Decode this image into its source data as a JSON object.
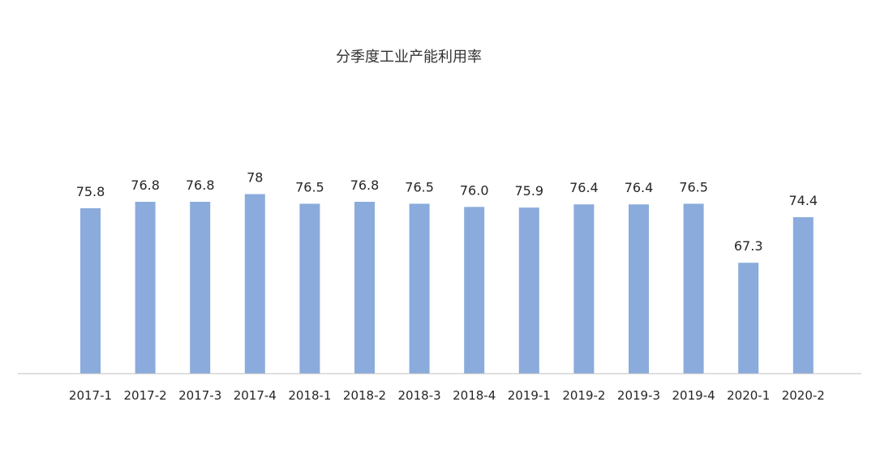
{
  "chart_data": {
    "type": "bar",
    "title": "分季度工业产能利用率",
    "xlabel": "",
    "ylabel": "",
    "categories": [
      "2017-1",
      "2017-2",
      "2017-3",
      "2017-4",
      "2018-1",
      "2018-2",
      "2018-3",
      "2018-4",
      "2019-1",
      "2019-2",
      "2019-3",
      "2019-4",
      "2020-1",
      "2020-2"
    ],
    "values": [
      75.8,
      76.8,
      76.8,
      78,
      76.5,
      76.8,
      76.5,
      76.0,
      75.9,
      76.4,
      76.4,
      76.5,
      67.3,
      74.4
    ],
    "data_labels": [
      "75.8",
      "76.8",
      "76.8",
      "78",
      "76.5",
      "76.8",
      "76.5",
      "76.0",
      "75.9",
      "76.4",
      "76.4",
      "76.5",
      "67.3",
      "74.4"
    ],
    "ylim": [
      50,
      80
    ],
    "grid": false,
    "legend": "none",
    "colors": {
      "bar": "#8aabdc",
      "axis": "#bfbfbf",
      "text": "#262626"
    }
  }
}
